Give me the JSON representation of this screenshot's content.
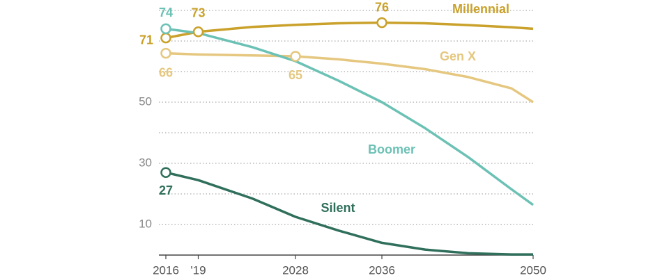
{
  "chart_data": {
    "type": "line",
    "x": [
      2016,
      2019,
      2024,
      2028,
      2032,
      2036,
      2040,
      2044,
      2048,
      2050
    ],
    "series": [
      {
        "name": "Millennial",
        "color": "#c9a12b",
        "values": [
          71,
          73,
          74.6,
          75.3,
          75.8,
          76,
          75.8,
          75.2,
          74.5,
          74
        ],
        "labeled_points": [
          0,
          1,
          5
        ]
      },
      {
        "name": "Gen X",
        "color": "#e5c77f",
        "values": [
          66,
          65.6,
          65.3,
          65,
          64,
          62.6,
          60.8,
          58.2,
          54.5,
          50
        ],
        "labeled_points": [
          0,
          3
        ]
      },
      {
        "name": "Boomer",
        "color": "#6cc1b5",
        "values": [
          74,
          72.6,
          68,
          63.4,
          57,
          50,
          41.5,
          32,
          21.5,
          16.4
        ],
        "labeled_points": [
          0
        ]
      },
      {
        "name": "Silent",
        "color": "#2f6f5b",
        "values": [
          27,
          24.5,
          18.5,
          12.5,
          8,
          4,
          1.8,
          0.6,
          0.2,
          0.2
        ],
        "labeled_points": [
          0
        ]
      }
    ],
    "xlim": [
      2016,
      2050
    ],
    "xticks": [
      2016,
      {
        "value": 2019,
        "label": "'19"
      },
      2028,
      2036,
      2050
    ],
    "ylim": [
      0,
      80
    ],
    "yticks": [
      10,
      30,
      50
    ],
    "ygrid": [
      10,
      20,
      30,
      40,
      50,
      60,
      70,
      80
    ],
    "grid": true
  }
}
